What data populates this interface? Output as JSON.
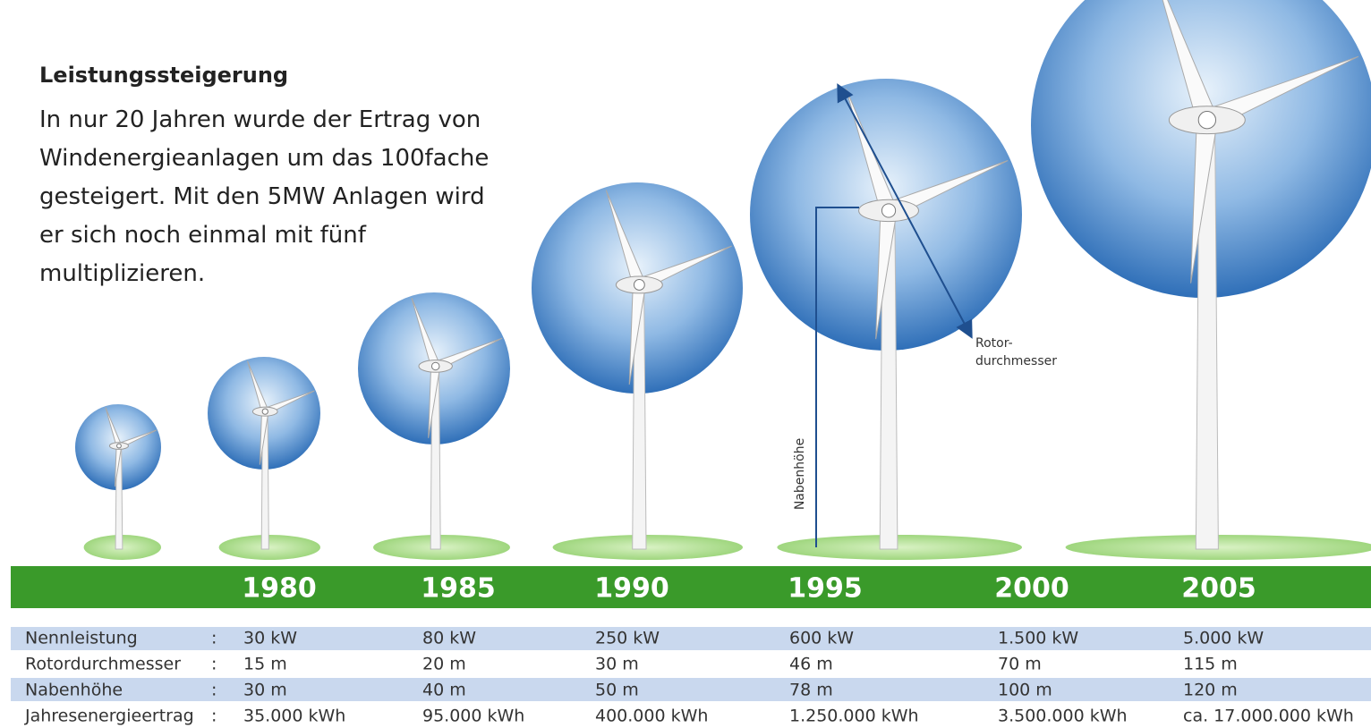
{
  "header": {
    "title": "Leistungssteigerung",
    "lines": [
      "In nur 20 Jahren wurde der Ertrag von",
      "Windenergieanlagen um das 100fache",
      "gesteigert. Mit den 5MW Anlagen wird",
      "er sich noch einmal mit fünf",
      "multiplizieren."
    ]
  },
  "annotations": {
    "rotor": [
      "Rotor-",
      "durchmesser"
    ],
    "hub": "Nabenhöhe"
  },
  "years": [
    "1980",
    "1985",
    "1990",
    "1995",
    "2000",
    "2005"
  ],
  "table": {
    "rows": [
      {
        "label": "Nennleistung",
        "sep": ":",
        "cells": [
          "30 kW",
          "80 kW",
          "250 kW",
          "600 kW",
          "1.500 kW",
          "5.000 kW"
        ]
      },
      {
        "label": "Rotordurchmesser",
        "sep": ":",
        "cells": [
          "15 m",
          "20 m",
          "30 m",
          "46 m",
          "70 m",
          "115 m"
        ]
      },
      {
        "label": "Nabenhöhe",
        "sep": ":",
        "cells": [
          "30 m",
          "40 m",
          "50 m",
          "78 m",
          "100 m",
          "120 m"
        ]
      },
      {
        "label": "Jahresenergieertrag",
        "sep": ":",
        "cells": [
          "35.000 kWh",
          "95.000 kWh",
          "400.000 kWh",
          "1.250.000 kWh",
          "3.500.000 kWh",
          "ca. 17.000.000 kWh"
        ]
      }
    ]
  }
}
